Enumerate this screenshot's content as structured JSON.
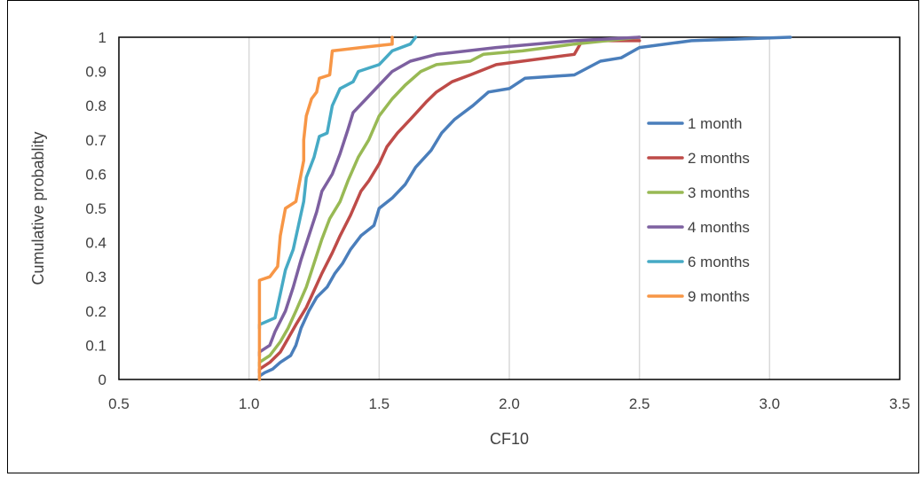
{
  "chart_data": {
    "type": "line",
    "xlabel": "CF10",
    "ylabel": "Cumulative probablity",
    "xlim": [
      0.5,
      3.5
    ],
    "ylim": [
      0,
      1
    ],
    "x_ticks": [
      "0.5",
      "1.0",
      "1.5",
      "2.0",
      "2.5",
      "3.0",
      "3.5"
    ],
    "y_ticks": [
      "0",
      "0.1",
      "0.2",
      "0.3",
      "0.4",
      "0.5",
      "0.6",
      "0.7",
      "0.8",
      "0.9",
      "1"
    ],
    "grid": "vertical",
    "legend_position": "right",
    "series": [
      {
        "name": "1 month",
        "color": "#4A7EBB",
        "points": [
          [
            1.04,
            0.0
          ],
          [
            1.04,
            0.01
          ],
          [
            1.06,
            0.02
          ],
          [
            1.09,
            0.03
          ],
          [
            1.12,
            0.05
          ],
          [
            1.16,
            0.07
          ],
          [
            1.18,
            0.1
          ],
          [
            1.2,
            0.15
          ],
          [
            1.23,
            0.2
          ],
          [
            1.26,
            0.24
          ],
          [
            1.3,
            0.27
          ],
          [
            1.33,
            0.31
          ],
          [
            1.36,
            0.34
          ],
          [
            1.39,
            0.38
          ],
          [
            1.43,
            0.42
          ],
          [
            1.48,
            0.45
          ],
          [
            1.5,
            0.5
          ],
          [
            1.55,
            0.53
          ],
          [
            1.6,
            0.57
          ],
          [
            1.64,
            0.62
          ],
          [
            1.7,
            0.67
          ],
          [
            1.74,
            0.72
          ],
          [
            1.79,
            0.76
          ],
          [
            1.86,
            0.8
          ],
          [
            1.92,
            0.84
          ],
          [
            2.0,
            0.85
          ],
          [
            2.06,
            0.88
          ],
          [
            2.25,
            0.89
          ],
          [
            2.35,
            0.93
          ],
          [
            2.43,
            0.94
          ],
          [
            2.5,
            0.97
          ],
          [
            2.7,
            0.99
          ],
          [
            3.08,
            1.0
          ]
        ]
      },
      {
        "name": "2 months",
        "color": "#BE4B48",
        "points": [
          [
            1.04,
            0.02
          ],
          [
            1.04,
            0.03
          ],
          [
            1.08,
            0.05
          ],
          [
            1.12,
            0.08
          ],
          [
            1.15,
            0.12
          ],
          [
            1.18,
            0.16
          ],
          [
            1.22,
            0.21
          ],
          [
            1.25,
            0.26
          ],
          [
            1.28,
            0.31
          ],
          [
            1.32,
            0.37
          ],
          [
            1.35,
            0.42
          ],
          [
            1.39,
            0.48
          ],
          [
            1.43,
            0.55
          ],
          [
            1.46,
            0.58
          ],
          [
            1.5,
            0.63
          ],
          [
            1.53,
            0.68
          ],
          [
            1.57,
            0.72
          ],
          [
            1.62,
            0.76
          ],
          [
            1.68,
            0.81
          ],
          [
            1.72,
            0.84
          ],
          [
            1.78,
            0.87
          ],
          [
            1.85,
            0.89
          ],
          [
            1.95,
            0.92
          ],
          [
            2.05,
            0.93
          ],
          [
            2.25,
            0.95
          ],
          [
            2.28,
            0.99
          ],
          [
            2.5,
            0.99
          ]
        ]
      },
      {
        "name": "3 months",
        "color": "#98B954",
        "points": [
          [
            1.04,
            0.04
          ],
          [
            1.04,
            0.05
          ],
          [
            1.08,
            0.07
          ],
          [
            1.12,
            0.11
          ],
          [
            1.15,
            0.15
          ],
          [
            1.18,
            0.2
          ],
          [
            1.22,
            0.27
          ],
          [
            1.25,
            0.34
          ],
          [
            1.28,
            0.41
          ],
          [
            1.31,
            0.47
          ],
          [
            1.35,
            0.52
          ],
          [
            1.38,
            0.58
          ],
          [
            1.42,
            0.65
          ],
          [
            1.46,
            0.7
          ],
          [
            1.5,
            0.77
          ],
          [
            1.55,
            0.82
          ],
          [
            1.6,
            0.86
          ],
          [
            1.66,
            0.9
          ],
          [
            1.72,
            0.92
          ],
          [
            1.85,
            0.93
          ],
          [
            1.9,
            0.95
          ],
          [
            2.05,
            0.96
          ],
          [
            2.25,
            0.98
          ],
          [
            2.5,
            1.0
          ]
        ]
      },
      {
        "name": "4 months",
        "color": "#7D60A0",
        "points": [
          [
            1.04,
            0.07
          ],
          [
            1.04,
            0.08
          ],
          [
            1.08,
            0.1
          ],
          [
            1.1,
            0.14
          ],
          [
            1.14,
            0.2
          ],
          [
            1.17,
            0.27
          ],
          [
            1.2,
            0.35
          ],
          [
            1.23,
            0.42
          ],
          [
            1.26,
            0.49
          ],
          [
            1.28,
            0.55
          ],
          [
            1.32,
            0.6
          ],
          [
            1.35,
            0.66
          ],
          [
            1.38,
            0.73
          ],
          [
            1.4,
            0.78
          ],
          [
            1.45,
            0.82
          ],
          [
            1.5,
            0.86
          ],
          [
            1.55,
            0.9
          ],
          [
            1.62,
            0.93
          ],
          [
            1.72,
            0.95
          ],
          [
            1.95,
            0.97
          ],
          [
            2.25,
            0.99
          ],
          [
            2.5,
            1.0
          ]
        ]
      },
      {
        "name": "6 months",
        "color": "#46AAC5",
        "points": [
          [
            1.04,
            0.15
          ],
          [
            1.04,
            0.16
          ],
          [
            1.1,
            0.18
          ],
          [
            1.12,
            0.25
          ],
          [
            1.14,
            0.32
          ],
          [
            1.17,
            0.38
          ],
          [
            1.19,
            0.45
          ],
          [
            1.21,
            0.52
          ],
          [
            1.22,
            0.59
          ],
          [
            1.25,
            0.65
          ],
          [
            1.27,
            0.71
          ],
          [
            1.3,
            0.72
          ],
          [
            1.32,
            0.8
          ],
          [
            1.35,
            0.85
          ],
          [
            1.4,
            0.87
          ],
          [
            1.42,
            0.9
          ],
          [
            1.5,
            0.92
          ],
          [
            1.55,
            0.96
          ],
          [
            1.62,
            0.98
          ],
          [
            1.64,
            1.0
          ]
        ]
      },
      {
        "name": "9 months",
        "color": "#F79646",
        "points": [
          [
            1.04,
            0.0
          ],
          [
            1.04,
            0.29
          ],
          [
            1.08,
            0.3
          ],
          [
            1.11,
            0.33
          ],
          [
            1.12,
            0.42
          ],
          [
            1.14,
            0.5
          ],
          [
            1.18,
            0.52
          ],
          [
            1.2,
            0.6
          ],
          [
            1.21,
            0.64
          ],
          [
            1.21,
            0.7
          ],
          [
            1.22,
            0.77
          ],
          [
            1.24,
            0.82
          ],
          [
            1.26,
            0.84
          ],
          [
            1.27,
            0.88
          ],
          [
            1.31,
            0.89
          ],
          [
            1.32,
            0.96
          ],
          [
            1.43,
            0.97
          ],
          [
            1.55,
            0.98
          ],
          [
            1.55,
            1.0
          ]
        ]
      }
    ]
  }
}
